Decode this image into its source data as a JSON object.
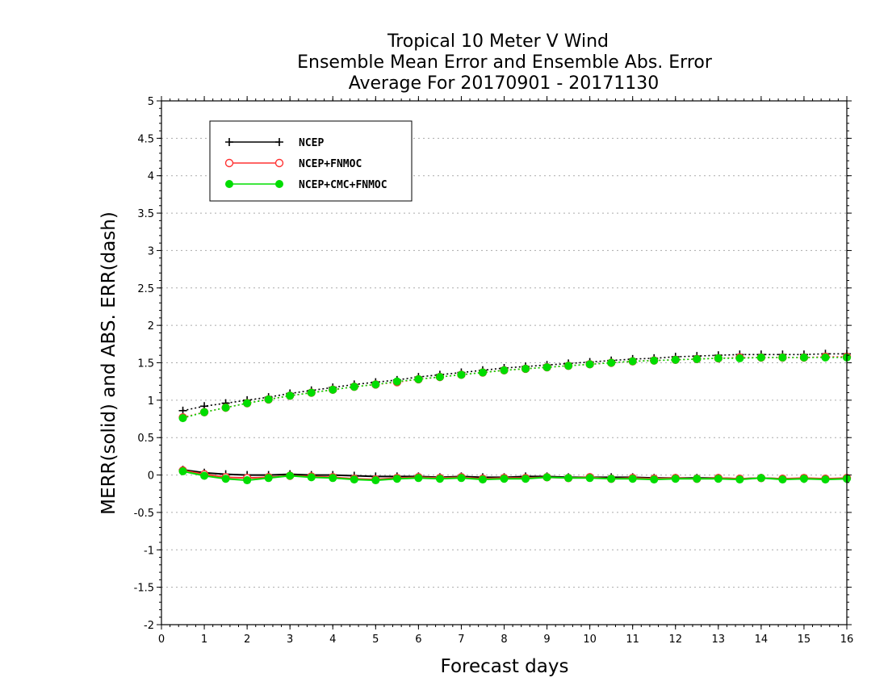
{
  "chart_data": {
    "type": "line",
    "title_lines": [
      "Tropical 10 Meter V Wind",
      "Ensemble Mean Error and Ensemble Abs. Error",
      "Average For 20170901 - 20171130"
    ],
    "xlabel": "Forecast days",
    "ylabel": "MERR(solid) and ABS. ERR(dash)",
    "xlim": [
      0,
      16
    ],
    "ylim": [
      -2,
      5
    ],
    "xticks": [
      "0",
      "1",
      "2",
      "3",
      "4",
      "5",
      "6",
      "7",
      "8",
      "9",
      "10",
      "11",
      "12",
      "13",
      "14",
      "15",
      "16"
    ],
    "yticks": [
      "5",
      "4.5",
      "4",
      "3.5",
      "3",
      "2.5",
      "2",
      "1.5",
      "1",
      "0.5",
      "0",
      "-0.5",
      "-1",
      "-1.5",
      "-2"
    ],
    "grid": "horizontal-dotted",
    "legend_position": "top-left",
    "x": [
      0.5,
      1,
      1.5,
      2,
      2.5,
      3,
      3.5,
      4,
      4.5,
      5,
      5.5,
      6,
      6.5,
      7,
      7.5,
      8,
      8.5,
      9,
      9.5,
      10,
      10.5,
      11,
      11.5,
      12,
      12.5,
      13,
      13.5,
      14,
      14.5,
      15,
      15.5,
      16
    ],
    "series": [
      {
        "name": "NCEP",
        "color": "#000000",
        "marker": "plus",
        "merr": [
          0.07,
          0.03,
          0.01,
          0.0,
          0.0,
          0.01,
          0.0,
          0.0,
          -0.01,
          -0.02,
          -0.02,
          -0.02,
          -0.03,
          -0.02,
          -0.03,
          -0.03,
          -0.02,
          -0.02,
          -0.03,
          -0.03,
          -0.03,
          -0.03,
          -0.04,
          -0.04,
          -0.04,
          -0.04,
          -0.05,
          -0.04,
          -0.05,
          -0.05,
          -0.05,
          -0.05
        ],
        "abs_err": [
          0.86,
          0.92,
          0.96,
          1.0,
          1.04,
          1.09,
          1.13,
          1.17,
          1.21,
          1.24,
          1.27,
          1.31,
          1.34,
          1.37,
          1.4,
          1.43,
          1.45,
          1.47,
          1.49,
          1.51,
          1.53,
          1.55,
          1.56,
          1.58,
          1.59,
          1.6,
          1.61,
          1.61,
          1.61,
          1.61,
          1.62,
          1.62
        ]
      },
      {
        "name": "NCEP+FNMOC",
        "color": "#ff3333",
        "marker": "open-circle",
        "merr": [
          0.06,
          0.01,
          -0.03,
          -0.04,
          -0.03,
          -0.01,
          -0.02,
          -0.03,
          -0.05,
          -0.06,
          -0.04,
          -0.03,
          -0.04,
          -0.03,
          -0.05,
          -0.04,
          -0.04,
          -0.03,
          -0.04,
          -0.03,
          -0.05,
          -0.04,
          -0.05,
          -0.04,
          -0.05,
          -0.04,
          -0.05,
          -0.04,
          -0.05,
          -0.04,
          -0.05,
          -0.04
        ],
        "abs_err": [
          0.77,
          0.84,
          0.9,
          0.96,
          1.01,
          1.06,
          1.1,
          1.14,
          1.18,
          1.21,
          1.24,
          1.28,
          1.31,
          1.34,
          1.37,
          1.4,
          1.42,
          1.44,
          1.46,
          1.48,
          1.5,
          1.52,
          1.53,
          1.54,
          1.55,
          1.56,
          1.57,
          1.57,
          1.57,
          1.57,
          1.58,
          1.58
        ]
      },
      {
        "name": "NCEP+CMC+FNMOC",
        "color": "#00dd00",
        "marker": "filled-circle",
        "merr": [
          0.05,
          -0.01,
          -0.05,
          -0.07,
          -0.04,
          -0.01,
          -0.03,
          -0.04,
          -0.06,
          -0.07,
          -0.05,
          -0.04,
          -0.05,
          -0.04,
          -0.06,
          -0.05,
          -0.05,
          -0.03,
          -0.04,
          -0.04,
          -0.05,
          -0.05,
          -0.06,
          -0.05,
          -0.05,
          -0.05,
          -0.06,
          -0.04,
          -0.06,
          -0.05,
          -0.06,
          -0.05
        ],
        "abs_err": [
          0.76,
          0.84,
          0.9,
          0.96,
          1.01,
          1.06,
          1.1,
          1.14,
          1.18,
          1.21,
          1.25,
          1.28,
          1.31,
          1.34,
          1.37,
          1.4,
          1.42,
          1.44,
          1.46,
          1.48,
          1.5,
          1.52,
          1.53,
          1.54,
          1.55,
          1.56,
          1.56,
          1.57,
          1.57,
          1.57,
          1.57,
          1.57
        ]
      }
    ]
  }
}
